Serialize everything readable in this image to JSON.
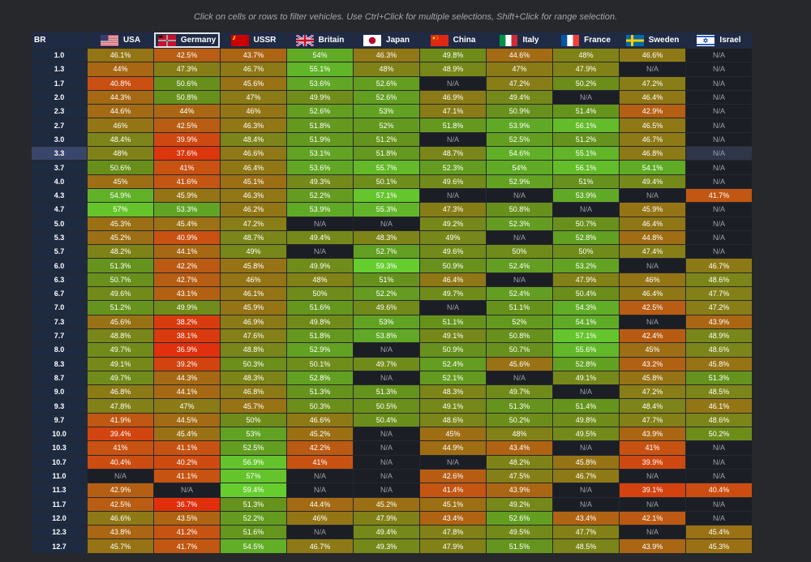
{
  "instructions": "Click on cells or rows to filter vehicles. Use Ctrl+Click for multiple selections, Shift+Click for range selection.",
  "selected_country": "Germany",
  "highlighted_row": "3.3",
  "columns": {
    "br": "BR",
    "countries": [
      {
        "name": "USA",
        "flag_icon": "usa-flag-icon"
      },
      {
        "name": "Germany",
        "flag_icon": "germany-flag-icon"
      },
      {
        "name": "USSR",
        "flag_icon": "ussr-flag-icon"
      },
      {
        "name": "Britain",
        "flag_icon": "britain-flag-icon"
      },
      {
        "name": "Japan",
        "flag_icon": "japan-flag-icon"
      },
      {
        "name": "China",
        "flag_icon": "china-flag-icon"
      },
      {
        "name": "Italy",
        "flag_icon": "italy-flag-icon"
      },
      {
        "name": "France",
        "flag_icon": "france-flag-icon"
      },
      {
        "name": "Sweden",
        "flag_icon": "sweden-flag-icon"
      },
      {
        "name": "Israel",
        "flag_icon": "israel-flag-icon"
      }
    ]
  },
  "rows": [
    {
      "br": "1.0",
      "cells": [
        "46.1%",
        "42.5%",
        "43.7%",
        "54%",
        "46.3%",
        "49.8%",
        "44.6%",
        "48%",
        "46.6%",
        "N/A"
      ]
    },
    {
      "br": "1.3",
      "cells": [
        "44%",
        "47.3%",
        "46.7%",
        "55.1%",
        "48%",
        "48.9%",
        "47%",
        "47.9%",
        "N/A",
        "N/A"
      ]
    },
    {
      "br": "1.7",
      "cells": [
        "40.8%",
        "50.6%",
        "45.6%",
        "53.6%",
        "52.6%",
        "N/A",
        "47.2%",
        "50.2%",
        "47.2%",
        "N/A"
      ]
    },
    {
      "br": "2.0",
      "cells": [
        "44.3%",
        "50.8%",
        "47%",
        "49.9%",
        "52.6%",
        "46.9%",
        "49.4%",
        "N/A",
        "46.4%",
        "N/A"
      ]
    },
    {
      "br": "2.3",
      "cells": [
        "44.6%",
        "44%",
        "46%",
        "52.6%",
        "53%",
        "47.1%",
        "50.9%",
        "51.4%",
        "42.9%",
        "N/A"
      ]
    },
    {
      "br": "2.7",
      "cells": [
        "46%",
        "42.5%",
        "46.3%",
        "51.8%",
        "52%",
        "51.8%",
        "53.9%",
        "56.1%",
        "46.5%",
        "N/A"
      ]
    },
    {
      "br": "3.0",
      "cells": [
        "48.4%",
        "39.9%",
        "48.4%",
        "51.9%",
        "51.2%",
        "N/A",
        "52.5%",
        "51.2%",
        "46.7%",
        "N/A"
      ]
    },
    {
      "br": "3.3",
      "cells": [
        "48%",
        "37.6%",
        "46.6%",
        "53.1%",
        "51.8%",
        "48.7%",
        "54.6%",
        "55.1%",
        "46.8%",
        "N/A"
      ]
    },
    {
      "br": "3.7",
      "cells": [
        "50.6%",
        "41%",
        "46.4%",
        "53.6%",
        "55.7%",
        "52.3%",
        "54%",
        "56.1%",
        "54.1%",
        "N/A"
      ]
    },
    {
      "br": "4.0",
      "cells": [
        "45%",
        "41.6%",
        "45.1%",
        "49.3%",
        "50.1%",
        "49.6%",
        "52.9%",
        "51%",
        "49.4%",
        "N/A"
      ]
    },
    {
      "br": "4.3",
      "cells": [
        "54.9%",
        "45.9%",
        "46.3%",
        "52.2%",
        "57.1%",
        "N/A",
        "N/A",
        "53.9%",
        "N/A",
        "41.7%"
      ]
    },
    {
      "br": "4.7",
      "cells": [
        "57%",
        "53.3%",
        "46.2%",
        "53.9%",
        "55.3%",
        "47.3%",
        "50.8%",
        "N/A",
        "45.9%",
        "N/A"
      ]
    },
    {
      "br": "5.0",
      "cells": [
        "45.3%",
        "45.4%",
        "47.2%",
        "N/A",
        "N/A",
        "49.2%",
        "52.3%",
        "50.7%",
        "46.4%",
        "N/A"
      ]
    },
    {
      "br": "5.3",
      "cells": [
        "45.2%",
        "40.9%",
        "48.7%",
        "49.4%",
        "48.3%",
        "49%",
        "N/A",
        "52.8%",
        "44.8%",
        "N/A"
      ]
    },
    {
      "br": "5.7",
      "cells": [
        "48.2%",
        "44.1%",
        "49%",
        "N/A",
        "52.7%",
        "49.6%",
        "50%",
        "50%",
        "47.4%",
        "N/A"
      ]
    },
    {
      "br": "6.0",
      "cells": [
        "51.3%",
        "42.2%",
        "45.8%",
        "49.9%",
        "59.3%",
        "50.9%",
        "52.4%",
        "53.2%",
        "N/A",
        "46.7%"
      ]
    },
    {
      "br": "6.3",
      "cells": [
        "50.7%",
        "42.7%",
        "46%",
        "48%",
        "51%",
        "46.4%",
        "N/A",
        "47.9%",
        "46%",
        "48.6%"
      ]
    },
    {
      "br": "6.7",
      "cells": [
        "49.6%",
        "43.1%",
        "46.1%",
        "50%",
        "52.2%",
        "49.7%",
        "52.4%",
        "50.4%",
        "46.4%",
        "47.7%"
      ]
    },
    {
      "br": "7.0",
      "cells": [
        "51.2%",
        "49.9%",
        "45.9%",
        "51.6%",
        "49.6%",
        "N/A",
        "51.1%",
        "54.3%",
        "42.5%",
        "47.2%"
      ]
    },
    {
      "br": "7.3",
      "cells": [
        "45.6%",
        "38.2%",
        "46.9%",
        "49.8%",
        "53%",
        "51.1%",
        "52%",
        "54.1%",
        "N/A",
        "43.9%"
      ]
    },
    {
      "br": "7.7",
      "cells": [
        "48.8%",
        "38.1%",
        "47.6%",
        "51.8%",
        "53.8%",
        "49.1%",
        "50.8%",
        "57.1%",
        "42.4%",
        "48.9%"
      ]
    },
    {
      "br": "8.0",
      "cells": [
        "49.7%",
        "36.9%",
        "48.8%",
        "52.9%",
        "N/A",
        "50.9%",
        "50.7%",
        "55.6%",
        "45%",
        "48.6%"
      ]
    },
    {
      "br": "8.3",
      "cells": [
        "49.1%",
        "39.2%",
        "50.3%",
        "50.1%",
        "49.7%",
        "52.4%",
        "45.6%",
        "52.8%",
        "43.2%",
        "45.8%"
      ]
    },
    {
      "br": "8.7",
      "cells": [
        "49.7%",
        "44.3%",
        "48.3%",
        "52.8%",
        "N/A",
        "52.1%",
        "N/A",
        "49.1%",
        "45.8%",
        "51.3%"
      ]
    },
    {
      "br": "9.0",
      "cells": [
        "46.8%",
        "44.1%",
        "46.8%",
        "51.3%",
        "51.3%",
        "48.3%",
        "49.7%",
        "N/A",
        "47.2%",
        "48.5%"
      ]
    },
    {
      "br": "9.3",
      "cells": [
        "47.8%",
        "47%",
        "45.7%",
        "50.3%",
        "50.5%",
        "49.1%",
        "51.3%",
        "51.4%",
        "48.4%",
        "46.1%"
      ]
    },
    {
      "br": "9.7",
      "cells": [
        "41.9%",
        "44.5%",
        "50%",
        "46.6%",
        "50.4%",
        "48.6%",
        "50.2%",
        "49.8%",
        "47.7%",
        "48.6%"
      ]
    },
    {
      "br": "10.0",
      "cells": [
        "39.4%",
        "45.4%",
        "53%",
        "45.2%",
        "N/A",
        "45%",
        "48%",
        "49.5%",
        "43.9%",
        "50.2%"
      ]
    },
    {
      "br": "10.3",
      "cells": [
        "41%",
        "41.1%",
        "52.5%",
        "42.2%",
        "N/A",
        "44.9%",
        "43.4%",
        "N/A",
        "41%",
        "N/A"
      ]
    },
    {
      "br": "10.7",
      "cells": [
        "40.4%",
        "40.2%",
        "56.9%",
        "41%",
        "N/A",
        "N/A",
        "48.2%",
        "45.8%",
        "39.9%",
        "N/A"
      ]
    },
    {
      "br": "11.0",
      "cells": [
        "N/A",
        "41.1%",
        "57%",
        "N/A",
        "N/A",
        "42.6%",
        "47.5%",
        "46.7%",
        "N/A",
        "N/A"
      ]
    },
    {
      "br": "11.3",
      "cells": [
        "42.9%",
        "N/A",
        "59.4%",
        "N/A",
        "N/A",
        "41.4%",
        "43.9%",
        "N/A",
        "39.1%",
        "40.4%"
      ]
    },
    {
      "br": "11.7",
      "cells": [
        "42.5%",
        "36.7%",
        "51.3%",
        "44.4%",
        "45.2%",
        "45.1%",
        "49.2%",
        "N/A",
        "N/A",
        "N/A"
      ]
    },
    {
      "br": "12.0",
      "cells": [
        "46.6%",
        "43.5%",
        "52.2%",
        "46%",
        "47.9%",
        "43.4%",
        "52.6%",
        "43.4%",
        "42.1%",
        "N/A"
      ]
    },
    {
      "br": "12.3",
      "cells": [
        "43.8%",
        "41.2%",
        "51.6%",
        "N/A",
        "49.4%",
        "47.8%",
        "49.5%",
        "47.7%",
        "N/A",
        "45.4%"
      ]
    },
    {
      "br": "12.7",
      "cells": [
        "45.7%",
        "41.7%",
        "54.5%",
        "46.7%",
        "49.3%",
        "47.9%",
        "51.5%",
        "48.5%",
        "43.9%",
        "45.3%"
      ]
    }
  ]
}
